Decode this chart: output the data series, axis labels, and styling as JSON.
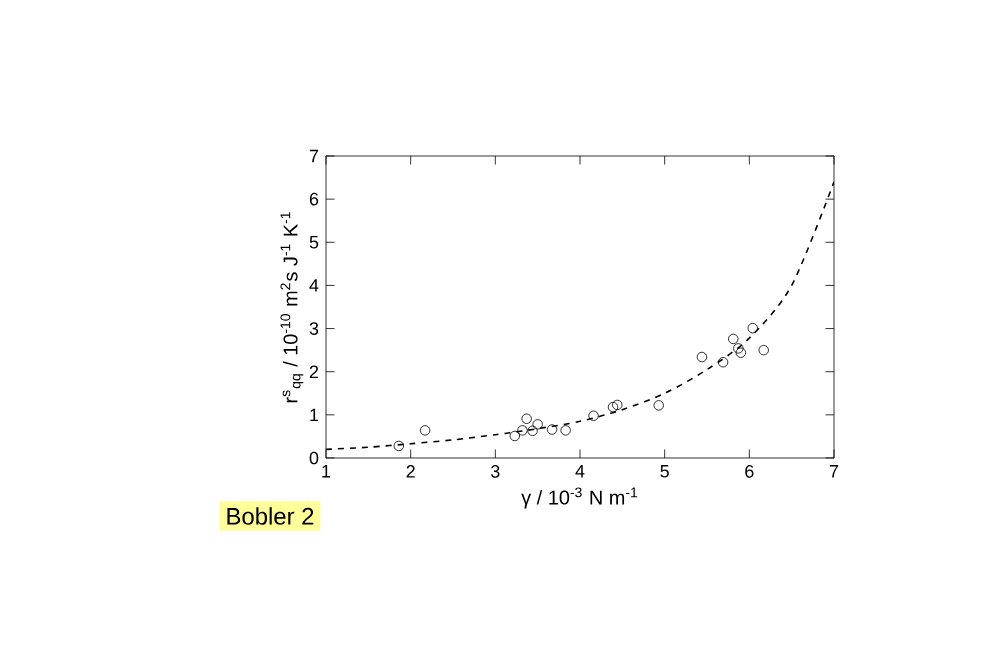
{
  "chart_data": {
    "type": "scatter",
    "xlabel": "γ / 10$^{-3}$ N m$^{-1}$",
    "ylabel": "r$^{s}$$_{qq}$ / 10$^{-10}$ m$^{2}$s J$^{-1}$ K$^{-1}$",
    "xlim": [
      1,
      7
    ],
    "ylim": [
      0,
      7
    ],
    "xticks": [
      1,
      2,
      3,
      4,
      5,
      6,
      7
    ],
    "yticks": [
      0,
      1,
      2,
      3,
      4,
      5,
      6,
      7
    ],
    "grid": false,
    "series": [
      {
        "marker": "circle",
        "color": "#000000",
        "x": [
          1.86,
          2.17,
          3.23,
          3.32,
          3.37,
          3.44,
          3.5,
          3.67,
          3.83,
          4.16,
          4.39,
          4.44,
          4.93,
          5.44,
          5.69,
          5.81,
          5.87,
          5.9,
          6.04,
          6.17
        ],
        "values": [
          0.28,
          0.64,
          0.51,
          0.64,
          0.91,
          0.63,
          0.78,
          0.66,
          0.64,
          0.98,
          1.18,
          1.23,
          1.22,
          2.34,
          2.22,
          2.76,
          2.54,
          2.44,
          3.01,
          2.5
        ]
      },
      {
        "type": "line",
        "line_style": "dashed",
        "color": "#000000",
        "x": [
          1,
          1.5,
          2,
          2.5,
          3,
          3.5,
          4,
          4.5,
          5,
          5.5,
          6,
          6.5,
          7
        ],
        "values": [
          0.2,
          0.25,
          0.33,
          0.42,
          0.54,
          0.68,
          0.85,
          1.12,
          1.5,
          2.05,
          2.78,
          4.0,
          6.4
        ]
      }
    ],
    "annotations": [
      "Bobler 2"
    ]
  }
}
